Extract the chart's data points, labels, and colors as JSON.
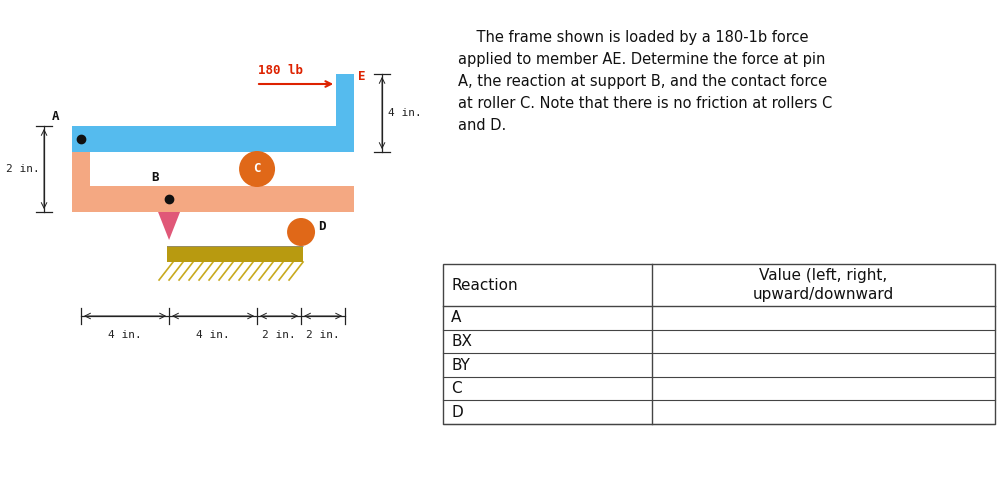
{
  "bg_color": "#ffffff",
  "description_lines": [
    "    The frame shown is loaded by a 180-1b force",
    "applied to member AE. Determine the force at pin",
    "A, the reaction at support B, and the contact force",
    "at roller C. Note that there is no friction at rollers C",
    "and D."
  ],
  "table_headers": [
    "Reaction",
    "Value (left, right,\nupward/downward"
  ],
  "table_rows": [
    "A",
    "BX",
    "BY",
    "C",
    "D"
  ],
  "force_label": "180 lb",
  "force_color": "#dd2200",
  "frame_blue_color": "#55bbee",
  "frame_salmon_color": "#f4a882",
  "roller_color": "#e06818",
  "pin_color": "#111111",
  "ground_color": "#b89a10",
  "ground_hatch_color": "#c8aa20",
  "dim_color": "#222222",
  "label_color_red": "#dd2200",
  "label_color_dark": "#111111",
  "label_E": "E",
  "label_A": "A",
  "label_B": "B",
  "label_C": "C",
  "label_D": "D",
  "dim_labels": [
    "4 in.",
    "4 in.",
    "2 in.",
    "2 in."
  ],
  "dim_right_label": "4 in.",
  "dim_left_vert_label": "2 in."
}
